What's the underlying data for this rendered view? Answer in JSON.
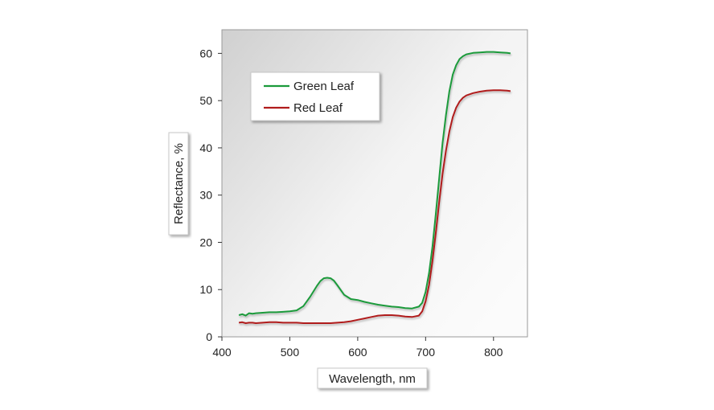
{
  "chart_data": {
    "type": "line",
    "xlabel": "Wavelength, nm",
    "ylabel": "Reflectance, %",
    "xlim": [
      400,
      850
    ],
    "ylim": [
      0,
      65
    ],
    "xticks": [
      400,
      500,
      600,
      700,
      800
    ],
    "yticks": [
      0,
      10,
      20,
      30,
      40,
      50,
      60
    ],
    "grid": false,
    "legend_position": "top-left",
    "background": "gradient-gray",
    "series": [
      {
        "name": "Green Leaf",
        "color": "#1a9a3a",
        "x": [
          425,
          430,
          435,
          440,
          445,
          450,
          460,
          470,
          480,
          490,
          500,
          510,
          520,
          530,
          540,
          545,
          550,
          555,
          560,
          565,
          570,
          580,
          590,
          600,
          610,
          620,
          630,
          640,
          650,
          660,
          670,
          680,
          690,
          695,
          700,
          705,
          710,
          715,
          720,
          725,
          730,
          735,
          740,
          745,
          750,
          755,
          760,
          770,
          780,
          790,
          800,
          810,
          820,
          825
        ],
        "y": [
          4.6,
          4.8,
          4.5,
          5.0,
          4.9,
          5.0,
          5.1,
          5.2,
          5.2,
          5.3,
          5.4,
          5.6,
          6.5,
          8.5,
          10.8,
          11.8,
          12.4,
          12.5,
          12.4,
          11.9,
          10.9,
          8.9,
          8.0,
          7.8,
          7.4,
          7.1,
          6.8,
          6.6,
          6.4,
          6.3,
          6.1,
          6.0,
          6.4,
          7.2,
          9.5,
          13.5,
          19.0,
          26.0,
          33.5,
          41.0,
          47.0,
          52.0,
          55.5,
          57.5,
          58.8,
          59.4,
          59.8,
          60.1,
          60.2,
          60.3,
          60.3,
          60.2,
          60.1,
          60.0
        ]
      },
      {
        "name": "Red Leaf",
        "color": "#b01c1c",
        "x": [
          425,
          430,
          435,
          440,
          445,
          450,
          460,
          470,
          480,
          490,
          500,
          510,
          520,
          530,
          540,
          550,
          560,
          570,
          580,
          590,
          600,
          610,
          620,
          630,
          640,
          650,
          660,
          670,
          680,
          690,
          695,
          700,
          705,
          710,
          715,
          720,
          725,
          730,
          735,
          740,
          745,
          750,
          755,
          760,
          770,
          780,
          790,
          800,
          810,
          820,
          825
        ],
        "y": [
          3.0,
          3.1,
          2.9,
          3.0,
          3.0,
          2.9,
          3.0,
          3.1,
          3.1,
          3.0,
          3.0,
          3.0,
          2.9,
          2.9,
          2.9,
          2.9,
          2.9,
          3.0,
          3.1,
          3.3,
          3.6,
          3.9,
          4.2,
          4.5,
          4.6,
          4.6,
          4.5,
          4.3,
          4.2,
          4.5,
          5.4,
          7.5,
          11.0,
          16.0,
          22.0,
          28.5,
          34.5,
          39.5,
          43.5,
          46.5,
          48.5,
          49.8,
          50.6,
          51.1,
          51.6,
          51.9,
          52.1,
          52.2,
          52.2,
          52.1,
          52.0
        ]
      }
    ]
  }
}
